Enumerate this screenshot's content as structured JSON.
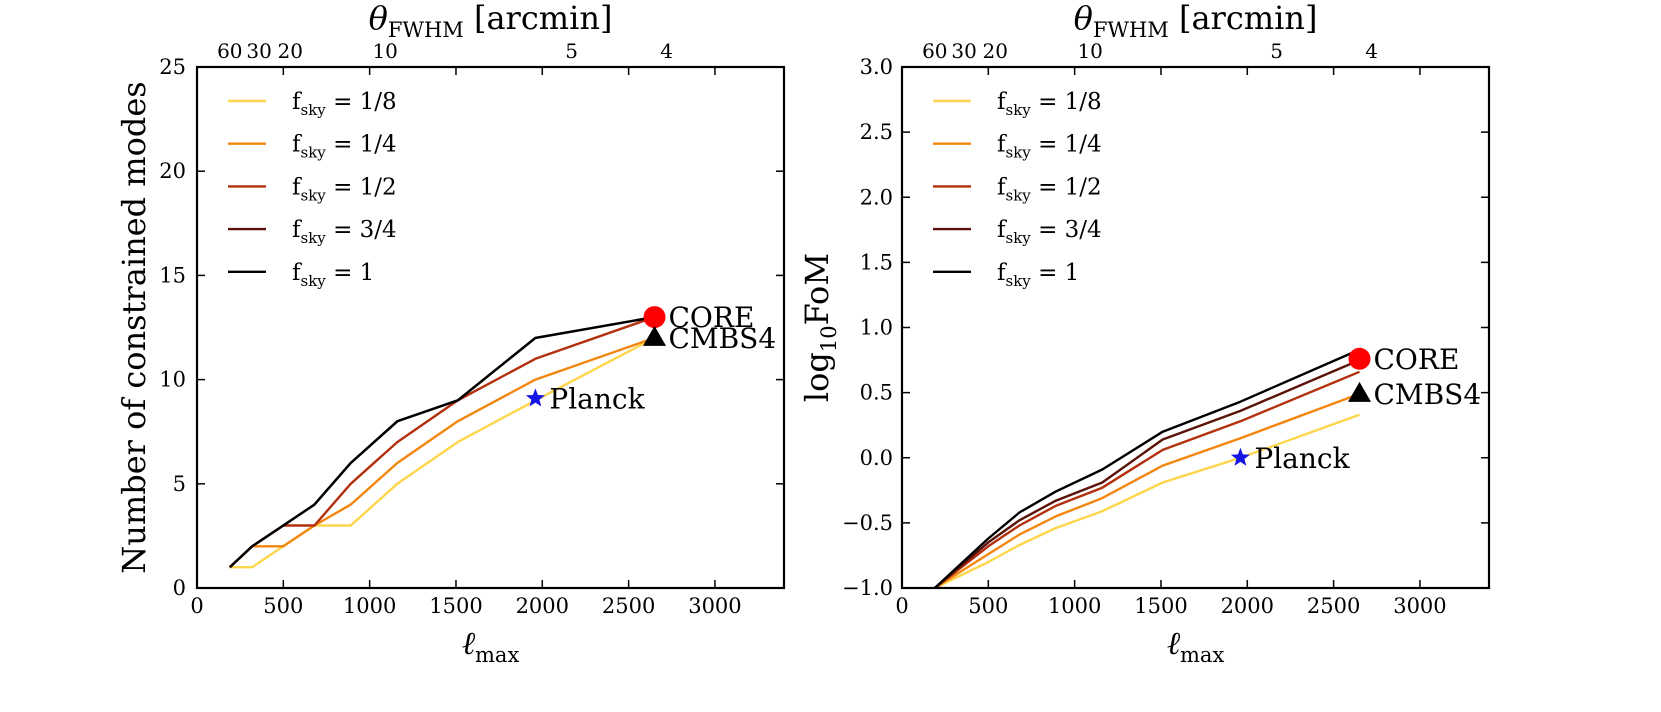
{
  "chart_data": [
    {
      "type": "line",
      "panel": "left",
      "xlabel": "ℓ",
      "xlabel_sub": "max",
      "ylabel": "Number of constrained modes",
      "xlim": [
        0,
        3400
      ],
      "ylim": [
        0,
        25
      ],
      "xticks": [
        0,
        500,
        1000,
        1500,
        2000,
        2500,
        3000
      ],
      "xtick_labels": [
        "0",
        "500",
        "1000",
        "1500",
        "2000",
        "2500",
        "3000"
      ],
      "yticks": [
        0,
        5,
        10,
        15,
        20,
        25
      ],
      "ytick_labels": [
        "0",
        "5",
        "10",
        "15",
        "20",
        "25"
      ],
      "top_axis": {
        "label_theta": "θ",
        "label_sub": "FWHM",
        "label_rest": "[arcmin]",
        "ticks": [
          {
            "label": "60",
            "ell": 190
          },
          {
            "label": "30",
            "ell": 360
          },
          {
            "label": "20",
            "ell": 540
          },
          {
            "label": "10",
            "ell": 1090
          },
          {
            "label": "5",
            "ell": 2170
          },
          {
            "label": "4",
            "ell": 2720
          }
        ]
      },
      "series": [
        {
          "name": "f_sky = 1/8",
          "legend_sub": "sky",
          "legend_value": "= 1/8",
          "color": "#fdd64c",
          "x": [
            190,
            320,
            500,
            680,
            890,
            1160,
            1510,
            1960,
            2650
          ],
          "y": [
            1,
            1,
            2,
            3,
            3,
            5,
            7,
            9,
            12
          ]
        },
        {
          "name": "f_sky = 1/4",
          "legend_sub": "sky",
          "legend_value": "= 1/4",
          "color": "#f3860f",
          "x": [
            190,
            320,
            500,
            680,
            890,
            1160,
            1510,
            1960,
            2650
          ],
          "y": [
            1,
            2,
            2,
            3,
            4,
            6,
            8,
            10,
            12
          ]
        },
        {
          "name": "f_sky = 1/2",
          "legend_sub": "sky",
          "legend_value": "= 1/2",
          "color": "#b2300d",
          "x": [
            190,
            320,
            500,
            680,
            890,
            1160,
            1510,
            1960,
            2650
          ],
          "y": [
            1,
            2,
            3,
            3,
            5,
            7,
            9,
            11,
            13
          ]
        },
        {
          "name": "f_sky = 3/4",
          "legend_sub": "sky",
          "legend_value": "= 3/4",
          "color": "#5a1309",
          "x": [
            190,
            320,
            500,
            680,
            890,
            1160,
            1510,
            1960,
            2650
          ],
          "y": [
            1,
            2,
            3,
            4,
            6,
            8,
            9,
            12,
            13
          ]
        },
        {
          "name": "f_sky = 1",
          "legend_sub": "sky",
          "legend_value": "= 1",
          "color": "#000000",
          "x": [
            190,
            320,
            500,
            680,
            890,
            1160,
            1510,
            1960,
            2650
          ],
          "y": [
            1,
            2,
            3,
            4,
            6,
            8,
            9,
            12,
            13
          ]
        }
      ],
      "points": [
        {
          "label": "CORE",
          "marker": "circle",
          "color": "#ff0000",
          "x": 2650,
          "y": 13
        },
        {
          "label": "CMBS4",
          "marker": "triangle",
          "color": "#000000",
          "x": 2650,
          "y": 12
        },
        {
          "label": "Planck",
          "marker": "star",
          "color": "#1515e6",
          "x": 1960,
          "y": 9.1
        }
      ],
      "legend_prefix": "f",
      "legend_position": "top-left"
    },
    {
      "type": "line",
      "panel": "right",
      "xlabel": "ℓ",
      "xlabel_sub": "max",
      "ylabel": "log",
      "ylabel_sub": "10",
      "ylabel_rest": "FoM",
      "xlim": [
        0,
        3400
      ],
      "ylim": [
        -1.0,
        3.0
      ],
      "xticks": [
        0,
        500,
        1000,
        1500,
        2000,
        2500,
        3000
      ],
      "xtick_labels": [
        "0",
        "500",
        "1000",
        "1500",
        "2000",
        "2500",
        "3000"
      ],
      "yticks": [
        -1.0,
        -0.5,
        0.0,
        0.5,
        1.0,
        1.5,
        2.0,
        2.5,
        3.0
      ],
      "ytick_labels": [
        "−1.0",
        "−0.5",
        "0.0",
        "0.5",
        "1.0",
        "1.5",
        "2.0",
        "2.5",
        "3.0"
      ],
      "top_axis": {
        "label_theta": "θ",
        "label_sub": "FWHM",
        "label_rest": "[arcmin]",
        "ticks": [
          {
            "label": "60",
            "ell": 190
          },
          {
            "label": "30",
            "ell": 360
          },
          {
            "label": "20",
            "ell": 540
          },
          {
            "label": "10",
            "ell": 1090
          },
          {
            "label": "5",
            "ell": 2170
          },
          {
            "label": "4",
            "ell": 2720
          }
        ]
      },
      "series": [
        {
          "name": "f_sky = 1/8",
          "legend_sub": "sky",
          "legend_value": "= 1/8",
          "color": "#fdd64c",
          "x": [
            190,
            500,
            680,
            890,
            1160,
            1510,
            1960,
            2650
          ],
          "y": [
            -1.0,
            -0.8,
            -0.67,
            -0.54,
            -0.41,
            -0.19,
            0.0,
            0.33
          ]
        },
        {
          "name": "f_sky = 1/4",
          "legend_sub": "sky",
          "legend_value": "= 1/4",
          "color": "#f3860f",
          "x": [
            190,
            500,
            680,
            890,
            1160,
            1510,
            1960,
            2650
          ],
          "y": [
            -1.0,
            -0.74,
            -0.59,
            -0.45,
            -0.31,
            -0.06,
            0.15,
            0.49
          ]
        },
        {
          "name": "f_sky = 1/2",
          "legend_sub": "sky",
          "legend_value": "= 1/2",
          "color": "#b2300d",
          "x": [
            190,
            500,
            680,
            890,
            1160,
            1510,
            1960,
            2650
          ],
          "y": [
            -1.0,
            -0.68,
            -0.52,
            -0.37,
            -0.23,
            0.06,
            0.28,
            0.66
          ]
        },
        {
          "name": "f_sky = 3/4",
          "legend_sub": "sky",
          "legend_value": "= 3/4",
          "color": "#5a1309",
          "x": [
            190,
            500,
            680,
            890,
            1160,
            1510,
            1960,
            2650
          ],
          "y": [
            -1.0,
            -0.65,
            -0.48,
            -0.33,
            -0.19,
            0.14,
            0.36,
            0.75
          ]
        },
        {
          "name": "f_sky = 1",
          "legend_sub": "sky",
          "legend_value": "= 1",
          "color": "#000000",
          "x": [
            190,
            500,
            680,
            890,
            1160,
            1510,
            1960,
            2650
          ],
          "y": [
            -1.0,
            -0.62,
            -0.42,
            -0.26,
            -0.09,
            0.2,
            0.43,
            0.83
          ]
        }
      ],
      "points": [
        {
          "label": "CORE",
          "marker": "circle",
          "color": "#ff0000",
          "x": 2650,
          "y": 0.76
        },
        {
          "label": "CMBS4",
          "marker": "triangle",
          "color": "#000000",
          "x": 2650,
          "y": 0.49
        },
        {
          "label": "Planck",
          "marker": "star",
          "color": "#1515e6",
          "x": 1960,
          "y": 0.0
        }
      ],
      "legend_prefix": "f",
      "legend_position": "top-left"
    }
  ]
}
